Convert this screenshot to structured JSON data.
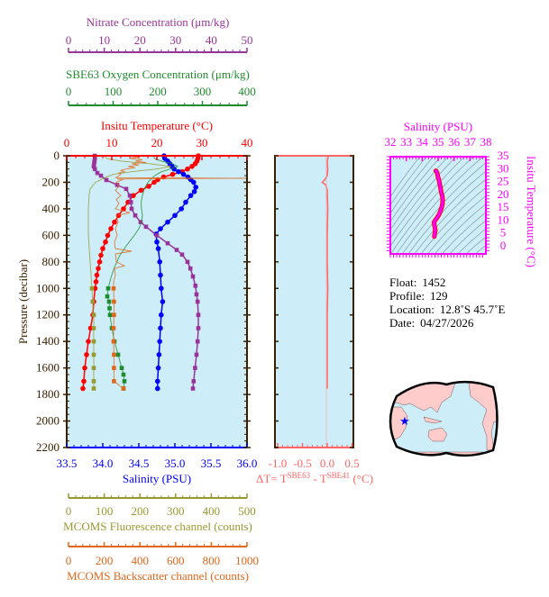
{
  "chart_data": {
    "type": "line",
    "axes": {
      "nitrate": {
        "label": "Nitrate Concentration (μm/kg)",
        "range": [
          0,
          50
        ],
        "ticks": [
          "0",
          "10",
          "20",
          "30",
          "40",
          "50"
        ],
        "color": "#993399"
      },
      "oxygen": {
        "label": "SBE63 Oxygen Concentration (μm/kg)",
        "range": [
          0,
          400
        ],
        "ticks": [
          "0",
          "100",
          "200",
          "300",
          "400"
        ],
        "color": "#1e8c2e"
      },
      "temperature": {
        "label": "Insitu Temperature (°C)",
        "range": [
          0,
          40
        ],
        "ticks": [
          "0",
          "10",
          "20",
          "30",
          "40"
        ],
        "color": "#ff0000"
      },
      "salinity": {
        "label": "Salinity (PSU)",
        "range": [
          33.5,
          36.0
        ],
        "ticks": [
          "33.5",
          "34.0",
          "34.5",
          "35.0",
          "35.5",
          "36.0"
        ],
        "color": "#0000ff"
      },
      "fluorescence": {
        "label": "MCOMS Fluorescence channel (counts)",
        "range": [
          0,
          500
        ],
        "ticks": [
          "0",
          "100",
          "200",
          "300",
          "400",
          "500"
        ],
        "color": "#999933"
      },
      "backscatter": {
        "label": "MCOMS Backscatter channel (counts)",
        "range": [
          0,
          1000
        ],
        "ticks": [
          "0",
          "200",
          "400",
          "600",
          "800",
          "1000"
        ],
        "color": "#e0661a"
      },
      "pressure": {
        "label": "Pressure (decibar)",
        "range": [
          0,
          2200
        ],
        "ticks": [
          "0",
          "200",
          "400",
          "600",
          "800",
          "1000",
          "1200",
          "1400",
          "1600",
          "1800",
          "2000",
          "2200"
        ],
        "reversed": true,
        "color": "#3a2000"
      },
      "delta_t": {
        "label_main": "ΔT= T",
        "sup1": "SBE63",
        "label_mid": " - T",
        "sup2": "SBE41",
        "label_unit": " (°C)",
        "range": [
          -1.0,
          0.5
        ],
        "ticks": [
          "-1.0",
          "-0.5",
          "0.0",
          "0.5"
        ],
        "color": "#ff6666"
      },
      "ts_salinity": {
        "label": "Salinity (PSU)",
        "range": [
          32,
          38
        ],
        "ticks": [
          "32",
          "33",
          "34",
          "35",
          "36",
          "37",
          "38"
        ],
        "color": "#ff00ff"
      },
      "ts_temperature": {
        "label": "Insitu Temperature (°C)",
        "range": [
          0,
          35
        ],
        "ticks": [
          "0",
          "5",
          "10",
          "15",
          "20",
          "25",
          "30",
          "35"
        ],
        "color": "#ff00ff"
      }
    },
    "series": [
      {
        "axis": "temperature",
        "marker": "circle",
        "points": [
          [
            0,
            29.2
          ],
          [
            20,
            29.1
          ],
          [
            40,
            28.9
          ],
          [
            60,
            28.5
          ],
          [
            80,
            27.8
          ],
          [
            100,
            26.8
          ],
          [
            120,
            25.6
          ],
          [
            140,
            23.5
          ],
          [
            160,
            21.5
          ],
          [
            180,
            20.2
          ],
          [
            200,
            19.4
          ],
          [
            230,
            18.2
          ],
          [
            260,
            16.5
          ],
          [
            300,
            14.8
          ],
          [
            350,
            13.6
          ],
          [
            400,
            12.6
          ],
          [
            450,
            11.5
          ],
          [
            500,
            10.6
          ],
          [
            550,
            9.8
          ],
          [
            600,
            9.1
          ],
          [
            650,
            8.6
          ],
          [
            700,
            8.0
          ],
          [
            750,
            7.6
          ],
          [
            800,
            7.3
          ],
          [
            850,
            7.0
          ],
          [
            900,
            6.7
          ],
          [
            950,
            6.5
          ],
          [
            1000,
            6.3
          ],
          [
            1100,
            6.0
          ],
          [
            1200,
            5.8
          ],
          [
            1300,
            5.3
          ],
          [
            1400,
            4.8
          ],
          [
            1500,
            4.4
          ],
          [
            1600,
            4.0
          ],
          [
            1700,
            3.8
          ],
          [
            1755,
            3.6
          ]
        ]
      },
      {
        "axis": "salinity",
        "marker": "circle",
        "points": [
          [
            0,
            34.85
          ],
          [
            20,
            34.86
          ],
          [
            40,
            34.9
          ],
          [
            60,
            34.93
          ],
          [
            80,
            34.96
          ],
          [
            100,
            34.99
          ],
          [
            120,
            35.05
          ],
          [
            140,
            35.12
          ],
          [
            160,
            35.18
          ],
          [
            180,
            35.22
          ],
          [
            200,
            35.26
          ],
          [
            237,
            35.29
          ],
          [
            270,
            35.27
          ],
          [
            300,
            35.22
          ],
          [
            350,
            35.15
          ],
          [
            400,
            35.09
          ],
          [
            450,
            35.0
          ],
          [
            500,
            34.9
          ],
          [
            550,
            34.8
          ],
          [
            590,
            34.74
          ],
          [
            650,
            34.75
          ],
          [
            700,
            34.77
          ],
          [
            800,
            34.79
          ],
          [
            900,
            34.8
          ],
          [
            1000,
            34.81
          ],
          [
            1100,
            34.83
          ],
          [
            1200,
            34.81
          ],
          [
            1300,
            34.8
          ],
          [
            1400,
            34.79
          ],
          [
            1500,
            34.78
          ],
          [
            1600,
            34.77
          ],
          [
            1700,
            34.76
          ],
          [
            1755,
            34.76
          ]
        ]
      },
      {
        "axis": "nitrate",
        "marker": "square",
        "points": [
          [
            0,
            7.8
          ],
          [
            20,
            7.8
          ],
          [
            40,
            7.7
          ],
          [
            60,
            7.6
          ],
          [
            80,
            7.5
          ],
          [
            100,
            7.8
          ],
          [
            130,
            8.5
          ],
          [
            150,
            9.5
          ],
          [
            183,
            11
          ],
          [
            220,
            14
          ],
          [
            250,
            16.5
          ],
          [
            300,
            17.5
          ],
          [
            350,
            17.8
          ],
          [
            400,
            18
          ],
          [
            450,
            19
          ],
          [
            500,
            20.5
          ],
          [
            535,
            22
          ],
          [
            600,
            25
          ],
          [
            660,
            28
          ],
          [
            710,
            30.5
          ],
          [
            745,
            32
          ],
          [
            800,
            33.5
          ],
          [
            850,
            34.3
          ],
          [
            910,
            35
          ],
          [
            980,
            35.7
          ],
          [
            1045,
            36
          ],
          [
            1100,
            36.3
          ],
          [
            1200,
            36.5
          ],
          [
            1300,
            36.5
          ],
          [
            1400,
            36.3
          ],
          [
            1500,
            36
          ],
          [
            1600,
            35.6
          ],
          [
            1700,
            35.2
          ],
          [
            1755,
            35
          ]
        ]
      },
      {
        "axis": "oxygen",
        "marker": "square",
        "marker_from": 1000,
        "points": [
          [
            0,
            192
          ],
          [
            20,
            195
          ],
          [
            40,
            210
          ],
          [
            60,
            235
          ],
          [
            80,
            246
          ],
          [
            100,
            230
          ],
          [
            120,
            210
          ],
          [
            150,
            195
          ],
          [
            200,
            180
          ],
          [
            250,
            172
          ],
          [
            300,
            168
          ],
          [
            350,
            165
          ],
          [
            400,
            166
          ],
          [
            450,
            168
          ],
          [
            500,
            166
          ],
          [
            550,
            160
          ],
          [
            600,
            150
          ],
          [
            680,
            132
          ],
          [
            750,
            118
          ],
          [
            840,
            106
          ],
          [
            920,
            98
          ],
          [
            1000,
            92
          ],
          [
            1060,
            90
          ],
          [
            1100,
            94
          ],
          [
            1150,
            95
          ],
          [
            1200,
            96
          ],
          [
            1300,
            100
          ],
          [
            1400,
            106
          ],
          [
            1500,
            114
          ],
          [
            1600,
            122
          ],
          [
            1650,
            126
          ],
          [
            1700,
            128
          ],
          [
            1755,
            126
          ]
        ]
      },
      {
        "axis": "fluorescence",
        "marker": "square",
        "marker_from": 1000,
        "points": [
          [
            0,
            105
          ],
          [
            20,
            110
          ],
          [
            40,
            150
          ],
          [
            60,
            230
          ],
          [
            80,
            290
          ],
          [
            100,
            250
          ],
          [
            120,
            180
          ],
          [
            140,
            130
          ],
          [
            160,
            110
          ],
          [
            200,
            80
          ],
          [
            250,
            65
          ],
          [
            300,
            62
          ],
          [
            400,
            60
          ],
          [
            600,
            60
          ],
          [
            800,
            65
          ],
          [
            1000,
            70
          ],
          [
            1100,
            72
          ],
          [
            1200,
            75
          ],
          [
            1300,
            75
          ],
          [
            1400,
            75
          ],
          [
            1500,
            75
          ],
          [
            1600,
            75
          ],
          [
            1700,
            75
          ],
          [
            1755,
            75
          ]
        ]
      },
      {
        "axis": "backscatter",
        "marker": "square",
        "marker_from": 1000,
        "points": [
          [
            0,
            330
          ],
          [
            10,
            400
          ],
          [
            20,
            350
          ],
          [
            30,
            420
          ],
          [
            40,
            380
          ],
          [
            50,
            440
          ],
          [
            60,
            360
          ],
          [
            70,
            400
          ],
          [
            80,
            340
          ],
          [
            90,
            380
          ],
          [
            100,
            330
          ],
          [
            110,
            300
          ],
          [
            120,
            320
          ],
          [
            130,
            290
          ],
          [
            140,
            300
          ],
          [
            160,
            280
          ],
          [
            165,
            270
          ],
          [
            170,
            1000
          ],
          [
            175,
            280
          ],
          [
            180,
            310
          ],
          [
            200,
            275
          ],
          [
            230,
            290
          ],
          [
            260,
            270
          ],
          [
            300,
            300
          ],
          [
            330,
            275
          ],
          [
            360,
            290
          ],
          [
            400,
            270
          ],
          [
            430,
            350
          ],
          [
            450,
            275
          ],
          [
            500,
            285
          ],
          [
            550,
            270
          ],
          [
            600,
            280
          ],
          [
            650,
            265
          ],
          [
            700,
            270
          ],
          [
            720,
            360
          ],
          [
            740,
            270
          ],
          [
            800,
            275
          ],
          [
            830,
            320
          ],
          [
            850,
            265
          ],
          [
            900,
            270
          ],
          [
            950,
            260
          ],
          [
            1000,
            260
          ],
          [
            1100,
            262
          ],
          [
            1200,
            262
          ],
          [
            1300,
            260
          ],
          [
            1400,
            260
          ],
          [
            1500,
            262
          ],
          [
            1600,
            262
          ],
          [
            1700,
            262
          ],
          [
            1755,
            315
          ]
        ]
      },
      {
        "axis": "delta_t",
        "marker": "none",
        "points": [
          [
            0,
            0.02
          ],
          [
            50,
            0.0
          ],
          [
            100,
            0.01
          ],
          [
            150,
            0.0
          ],
          [
            180,
            -0.05
          ],
          [
            200,
            -0.1
          ],
          [
            220,
            -0.03
          ],
          [
            260,
            0.0
          ],
          [
            400,
            0.01
          ],
          [
            600,
            0.0
          ],
          [
            800,
            0.0
          ],
          [
            1000,
            0.01
          ],
          [
            1200,
            0.0
          ],
          [
            1400,
            0.0
          ],
          [
            1600,
            0.0
          ],
          [
            1755,
            0.0
          ]
        ]
      }
    ],
    "grid": false
  },
  "info": {
    "float_label": "Float:",
    "float": "1452",
    "profile_label": "Profile:",
    "profile": "129",
    "location_label": "Location:",
    "location": "12.8˚S  45.7˚E",
    "date_label": "Date:",
    "date": "04/27/2026"
  },
  "map": {
    "float_marker": "blue-star",
    "land_color": "#ffcccc",
    "ocean_color": "#cceeff"
  }
}
